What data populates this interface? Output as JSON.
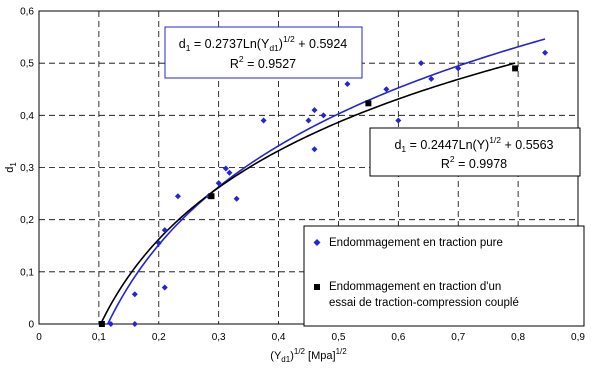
{
  "chart_data": {
    "type": "scatter",
    "xlabel": {
      "base": "(Y",
      "sub": "d1",
      "mid": ")",
      "sup": "1/2",
      "tail": " [Mpa]",
      "sup2": "1/2"
    },
    "ylabel": "d",
    "ylabel_sub": "1",
    "xlim": [
      0,
      0.9
    ],
    "ylim": [
      0,
      0.6
    ],
    "x_ticks": [
      0,
      0.1,
      0.2,
      0.3,
      0.4,
      0.5,
      0.6,
      0.7,
      0.8,
      0.9
    ],
    "x_tick_labels": [
      "0",
      "0,1",
      "0,2",
      "0,3",
      "0,4",
      "0,5",
      "0,6",
      "0,7",
      "0,8",
      "0,9"
    ],
    "y_ticks": [
      0,
      0.1,
      0.2,
      0.3,
      0.4,
      0.5,
      0.6
    ],
    "y_tick_labels": [
      "0",
      "0,1",
      "0,2",
      "0,3",
      "0,4",
      "0,5",
      "0,6"
    ],
    "grid": true,
    "legend_position": "bottom-right",
    "series": [
      {
        "name": "Endommagement en traction pure",
        "marker": "diamond",
        "color": "#2424d8",
        "points": [
          [
            0.12,
            0.0
          ],
          [
            0.16,
            0.0
          ],
          [
            0.16,
            0.057
          ],
          [
            0.21,
            0.07
          ],
          [
            0.21,
            0.18
          ],
          [
            0.2,
            0.155
          ],
          [
            0.232,
            0.245
          ],
          [
            0.283,
            0.245
          ],
          [
            0.3,
            0.27
          ],
          [
            0.312,
            0.298
          ],
          [
            0.318,
            0.29
          ],
          [
            0.33,
            0.24
          ],
          [
            0.375,
            0.39
          ],
          [
            0.45,
            0.39
          ],
          [
            0.46,
            0.41
          ],
          [
            0.46,
            0.335
          ],
          [
            0.475,
            0.4
          ],
          [
            0.515,
            0.46
          ],
          [
            0.58,
            0.45
          ],
          [
            0.6,
            0.39
          ],
          [
            0.638,
            0.5
          ],
          [
            0.655,
            0.47
          ],
          [
            0.7,
            0.49
          ],
          [
            0.845,
            0.52
          ]
        ]
      },
      {
        "name": "Endommagement en traction d'un essai de traction-compression couplé",
        "marker": "square",
        "color": "#000000",
        "points": [
          [
            0.105,
            0.0
          ],
          [
            0.288,
            0.245
          ],
          [
            0.55,
            0.423
          ],
          [
            0.795,
            0.49
          ]
        ]
      }
    ],
    "fits": [
      {
        "series": 0,
        "color": "#2424d8",
        "a": 0.2737,
        "b": 0.5924,
        "x_range": [
          0.115,
          0.845
        ]
      },
      {
        "series": 1,
        "color": "#000000",
        "a": 0.2447,
        "b": 0.5563,
        "x_range": [
          0.103,
          0.795
        ]
      }
    ],
    "annotations": [
      {
        "color": "#2424d8",
        "line1": {
          "a": "d",
          "a_sub": "1",
          "b": " = 0.2737Ln(Y",
          "b_sub": "d1",
          "c": ")",
          "c_sup": "1/2",
          "d": " + 0.5924"
        },
        "line2": {
          "a": "R",
          "a_sup": "2",
          "b": " = 0.9527"
        }
      },
      {
        "color": "#000000",
        "line1": {
          "a": "d",
          "a_sub": "1",
          "b": " = 0.2447Ln(Y)",
          "c_sup": "1/2",
          "d": " + 0.5563"
        },
        "line2": {
          "a": "R",
          "a_sup": "2",
          "b": " = 0.9978"
        }
      }
    ],
    "legend": [
      {
        "text": "Endommagement en traction pure",
        "marker": "diamond",
        "color": "#2424d8"
      },
      {
        "text_line1": "Endommagement en traction d'un",
        "text_line2": "essai de traction-compression couplé",
        "marker": "square",
        "color": "#000000"
      }
    ]
  }
}
